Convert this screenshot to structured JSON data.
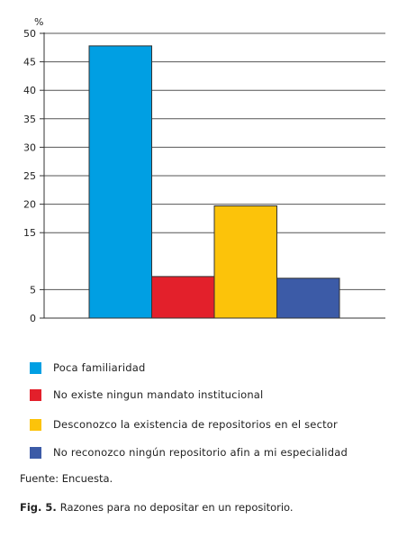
{
  "chart_data": {
    "type": "bar",
    "ylabel": "%",
    "ylim": [
      0,
      50
    ],
    "yticks": [
      0,
      5,
      15,
      20,
      25,
      30,
      35,
      40,
      45,
      50
    ],
    "grid": true,
    "categories": [
      "Poca familiaridad",
      "No existe ningun mandato institucional",
      "Desconozco la existencia de repositorios en el sector",
      "No reconozco ningún repositorio afin a mi especialidad"
    ],
    "values": [
      47.8,
      7.3,
      19.7,
      7.0
    ],
    "colors": [
      "#009FE3",
      "#E3202B",
      "#FCC30A",
      "#3C5BA7"
    ],
    "legend_position": "bottom"
  },
  "source": "Fuente: Encuesta.",
  "caption": {
    "label": "Fig. 5.",
    "text": "Razones para no depositar en un repositorio."
  }
}
